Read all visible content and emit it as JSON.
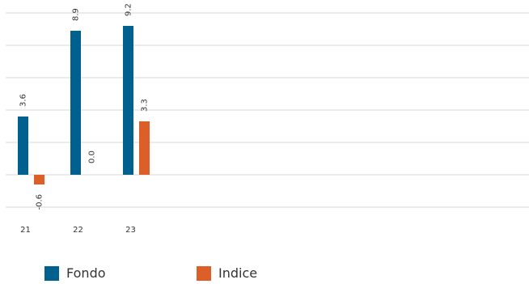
{
  "chart_data": {
    "type": "bar",
    "categories": [
      "21",
      "22",
      "23"
    ],
    "series": [
      {
        "name": "Fondo",
        "values": [
          3.6,
          8.9,
          9.2
        ],
        "color": "#00618e"
      },
      {
        "name": "Indice",
        "values": [
          -0.6,
          0.0,
          3.3
        ],
        "color": "#dc5f2a"
      }
    ],
    "data_labels": {
      "Fondo": [
        "3.6",
        "8.9",
        "9.2"
      ],
      "Indice": [
        "-0.6",
        "0.0",
        "3.3"
      ]
    },
    "ylim": [
      -2,
      10
    ],
    "grid": true,
    "legend_position": "bottom-left",
    "title": "",
    "xlabel": "",
    "ylabel": ""
  },
  "colors": {
    "grid": "#d9d9d9",
    "text": "#333333"
  }
}
